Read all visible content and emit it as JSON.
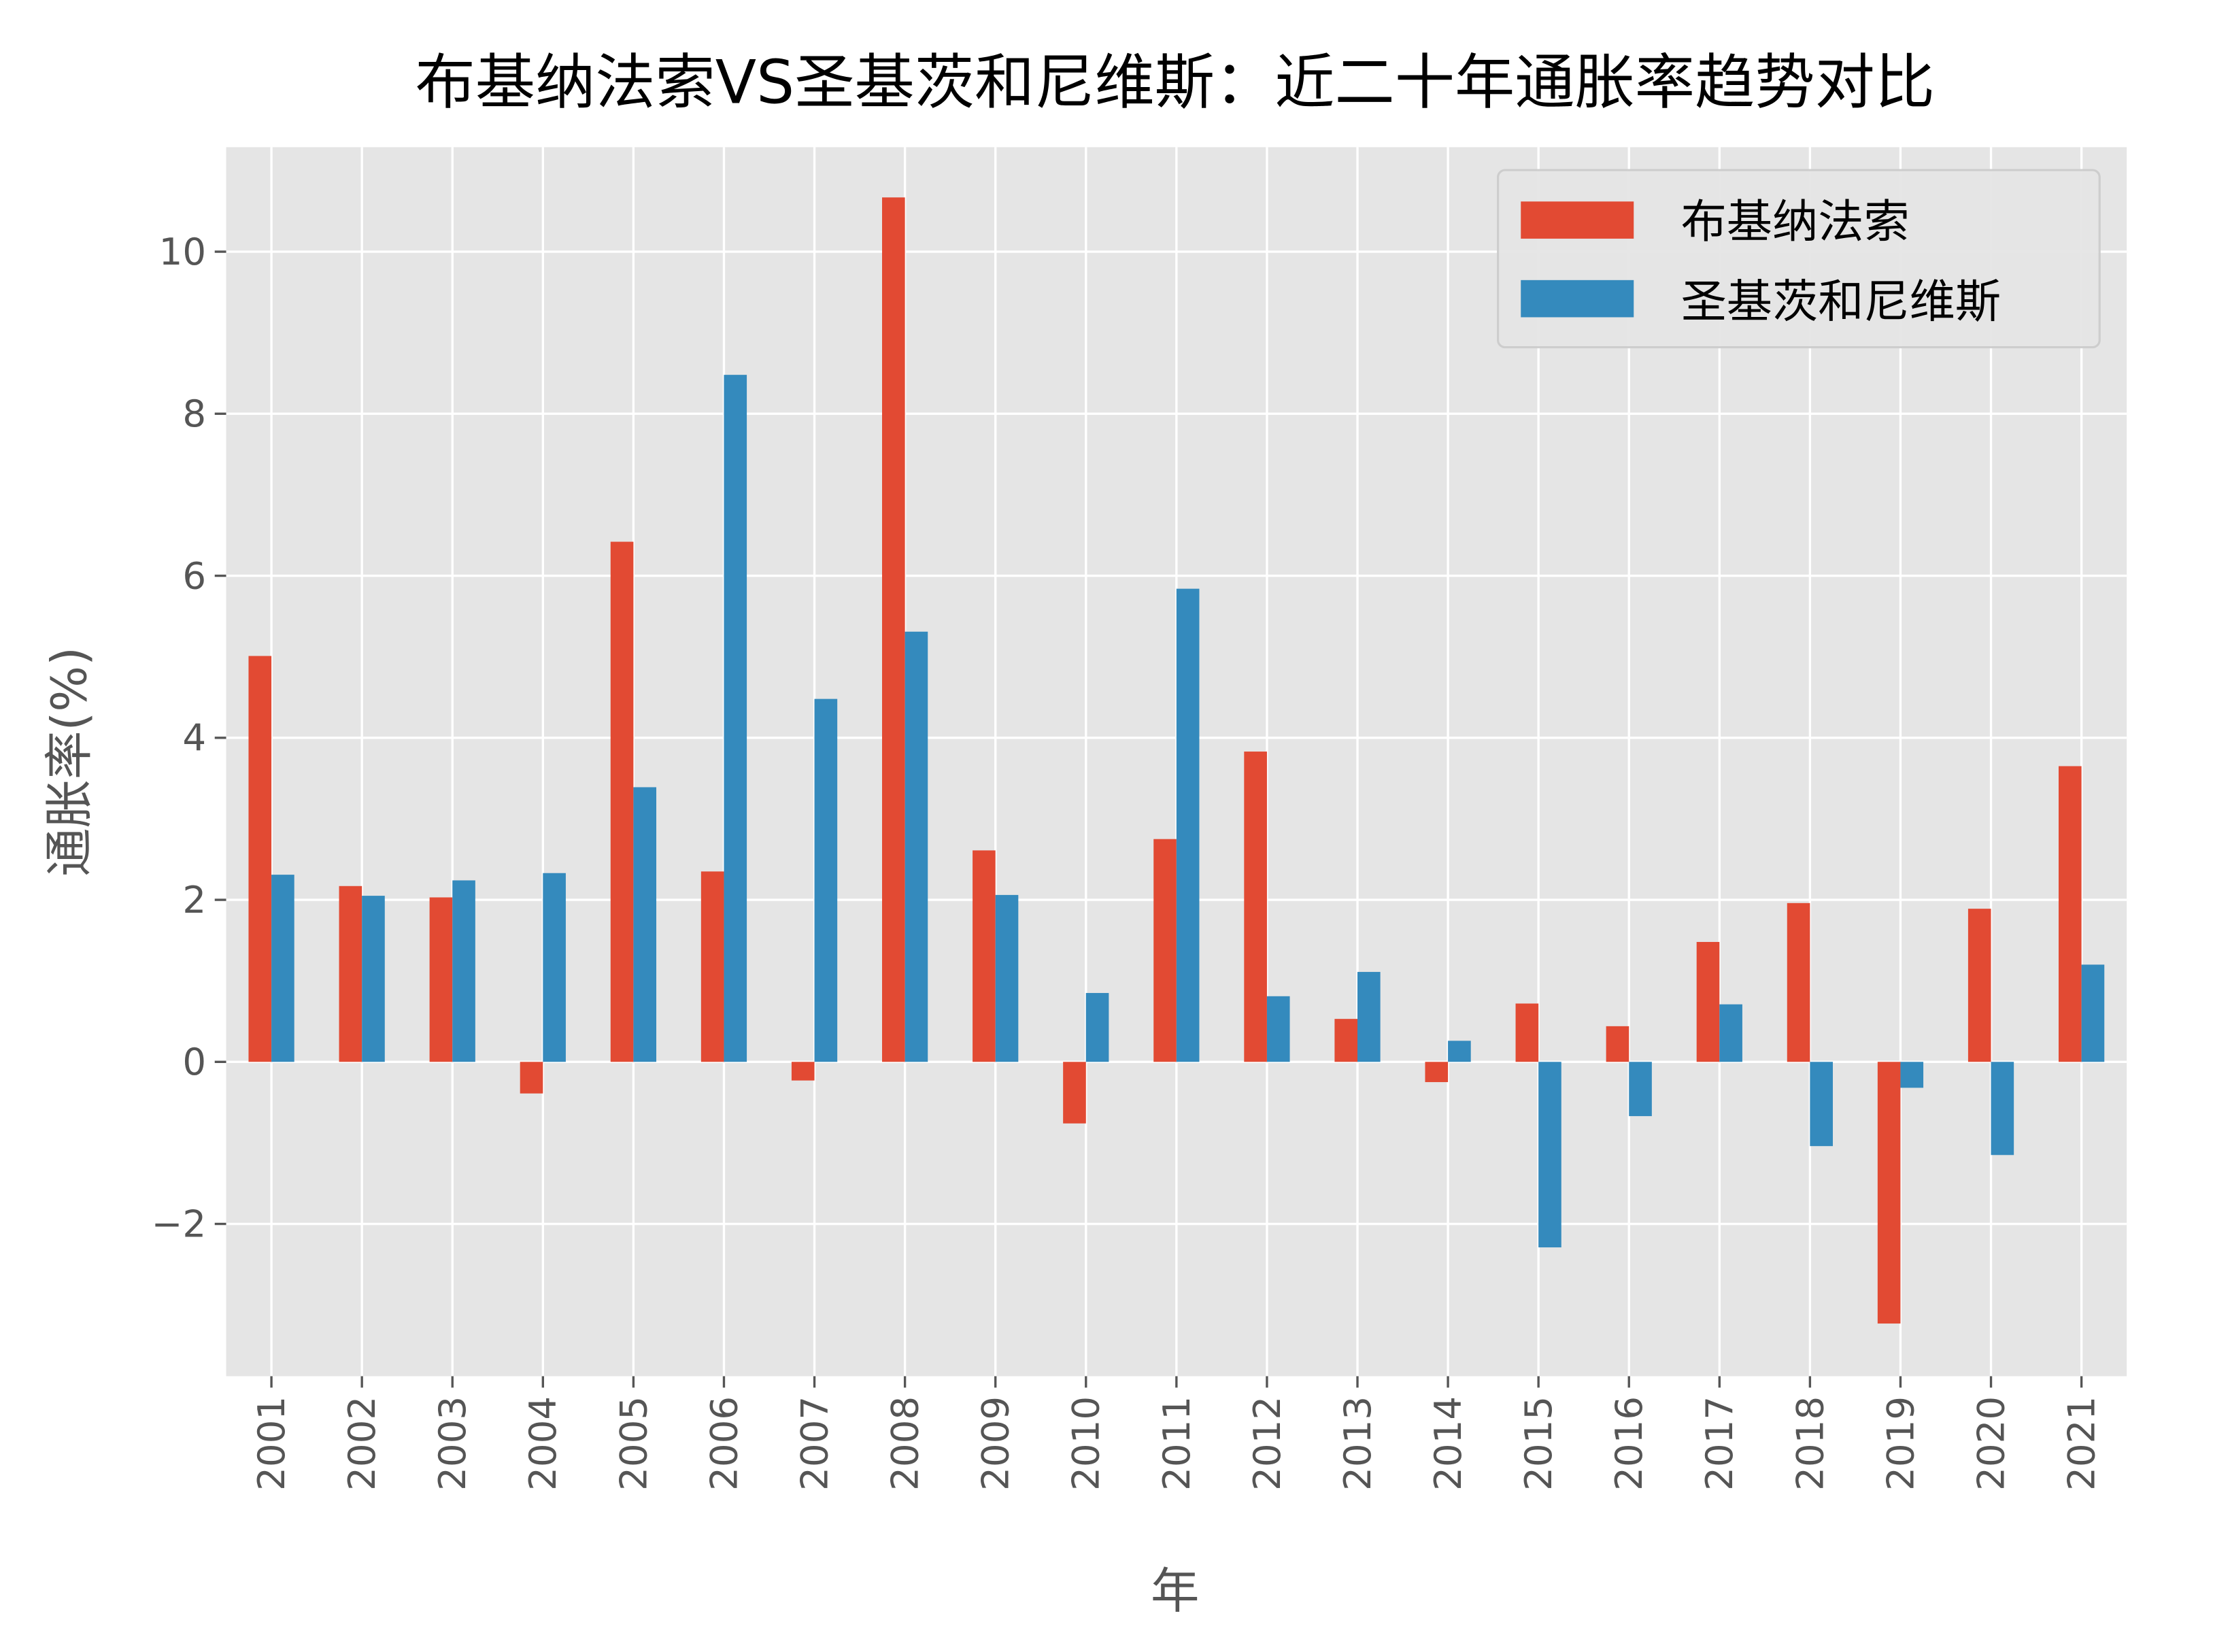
{
  "chart_data": {
    "type": "bar",
    "title": "布基纳法索VS圣基茨和尼维斯：近二十年通胀率趋势对比",
    "xlabel": "年",
    "ylabel": "通胀率(%)",
    "categories": [
      "2001",
      "2002",
      "2003",
      "2004",
      "2005",
      "2006",
      "2007",
      "2008",
      "2009",
      "2010",
      "2011",
      "2012",
      "2013",
      "2014",
      "2015",
      "2016",
      "2017",
      "2018",
      "2019",
      "2020",
      "2021"
    ],
    "series": [
      {
        "name": "布基纳法索",
        "color": "#E24A33",
        "values": [
          5.01,
          2.17,
          2.03,
          -0.39,
          6.42,
          2.35,
          -0.23,
          10.67,
          2.61,
          -0.76,
          2.75,
          3.83,
          0.53,
          -0.25,
          0.72,
          0.44,
          1.48,
          1.96,
          -3.23,
          1.89,
          3.65
        ]
      },
      {
        "name": "圣基茨和尼维斯",
        "color": "#348ABD",
        "values": [
          2.31,
          2.05,
          2.24,
          2.33,
          3.39,
          8.48,
          4.48,
          5.31,
          2.06,
          0.85,
          5.84,
          0.81,
          1.11,
          0.26,
          -2.29,
          -0.67,
          0.71,
          -1.04,
          -0.32,
          -1.15,
          1.2
        ]
      }
    ],
    "ylim": [
      -3.88,
      11.29
    ],
    "yticks": [
      -2,
      0,
      2,
      4,
      6,
      8,
      10
    ],
    "ytick_labels": [
      "−2",
      "0",
      "2",
      "4",
      "6",
      "8",
      "10"
    ],
    "grid": true,
    "legend": "top-right",
    "background": "#E5E5E5"
  }
}
